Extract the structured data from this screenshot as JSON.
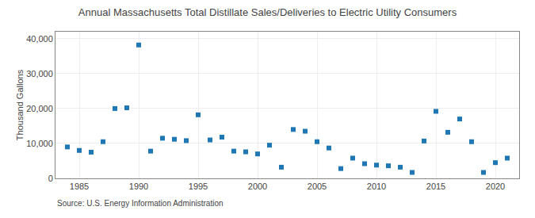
{
  "chart_data": {
    "type": "scatter",
    "title": "Annual Massachusetts Total Distillate Sales/Deliveries to Electric Utility Consumers",
    "ylabel": "Thousand Gallons",
    "annotations": [
      "Source: U.S. Energy Information Administration"
    ],
    "marker": "square",
    "grid": true,
    "xlim": [
      1983,
      2022
    ],
    "ylim": [
      0,
      42000
    ],
    "xticks": [
      1985,
      1990,
      1995,
      2000,
      2005,
      2010,
      2015,
      2020
    ],
    "yticks": [
      0,
      {
        "value": 10000,
        "label": "10,000"
      },
      {
        "value": 20000,
        "label": "20,000"
      },
      {
        "value": 30000,
        "label": "30,000"
      },
      {
        "value": 40000,
        "label": "40,000"
      }
    ],
    "x": [
      1984,
      1985,
      1986,
      1987,
      1988,
      1989,
      1990,
      1991,
      1992,
      1993,
      1994,
      1995,
      1996,
      1997,
      1998,
      1999,
      2000,
      2001,
      2002,
      2003,
      2004,
      2005,
      2006,
      2007,
      2008,
      2009,
      2010,
      2011,
      2012,
      2013,
      2014,
      2015,
      2016,
      2017,
      2018,
      2019,
      2020,
      2021
    ],
    "values": [
      9000,
      8000,
      7500,
      10500,
      20000,
      20200,
      38200,
      7800,
      11500,
      11200,
      10800,
      18200,
      11000,
      11800,
      7800,
      7600,
      7000,
      9500,
      3200,
      14000,
      13500,
      10500,
      8700,
      2800,
      5800,
      4200,
      3800,
      3600,
      3200,
      1700,
      10700,
      19200,
      13200,
      17000,
      10500,
      1700,
      4500,
      5800
    ]
  }
}
